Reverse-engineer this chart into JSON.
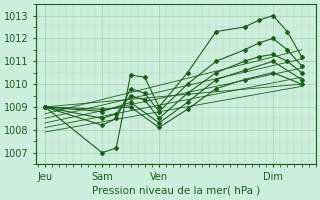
{
  "bg_color": "#cceedd",
  "line_color": "#1a5e1a",
  "grid_color": "#aaccaa",
  "xlabel": "Pression niveau de la mer( hPa )",
  "xtick_labels": [
    "Jeu",
    "Sam",
    "Ven",
    "Dim"
  ],
  "xtick_positions": [
    0,
    2,
    4,
    8
  ],
  "ylim": [
    1006.5,
    1013.5
  ],
  "yticks": [
    1007,
    1008,
    1009,
    1010,
    1011,
    1012,
    1013
  ],
  "figsize": [
    3.2,
    2.0
  ],
  "dpi": 100,
  "series": [
    [
      0,
      1009.0,
      2,
      1007.0,
      2.5,
      1007.2,
      3,
      1010.4,
      3.5,
      1010.3,
      4,
      1009.0,
      5,
      1010.5,
      6,
      1012.3,
      7,
      1012.5,
      7.5,
      1012.8,
      8,
      1013.0,
      8.5,
      1012.3,
      9,
      1011.2
    ],
    [
      0,
      1009.0,
      2,
      1008.2,
      2.5,
      1008.5,
      3,
      1009.8,
      3.5,
      1009.6,
      4,
      1008.8,
      5,
      1010.0,
      6,
      1011.0,
      7,
      1011.5,
      7.5,
      1011.8,
      8,
      1012.0,
      8.5,
      1011.5,
      9,
      1010.8
    ],
    [
      0,
      1009.0,
      2,
      1008.5,
      2.5,
      1008.7,
      3,
      1009.5,
      3.5,
      1009.3,
      4,
      1008.5,
      5,
      1009.6,
      6,
      1010.5,
      7,
      1011.0,
      7.5,
      1011.2,
      8,
      1011.3,
      8.5,
      1011.0,
      9,
      1010.5
    ],
    [
      0,
      1009.0,
      2,
      1008.8,
      3,
      1009.2,
      4,
      1008.3,
      5,
      1009.2,
      6,
      1010.2,
      7,
      1010.6,
      8,
      1011.0,
      9,
      1010.2
    ],
    [
      0,
      1009.0,
      2,
      1008.9,
      3,
      1009.0,
      4,
      1008.1,
      5,
      1008.9,
      6,
      1009.8,
      7,
      1010.2,
      8,
      1010.5,
      9,
      1010.0
    ],
    [
      0,
      1009.0,
      9,
      1010.0
    ],
    [
      0,
      1008.7,
      9,
      1011.5
    ],
    [
      0,
      1008.5,
      9,
      1011.1
    ],
    [
      0,
      1008.3,
      9,
      1010.7
    ],
    [
      0,
      1008.1,
      9,
      1010.3
    ],
    [
      0,
      1007.9,
      9,
      1009.9
    ]
  ]
}
